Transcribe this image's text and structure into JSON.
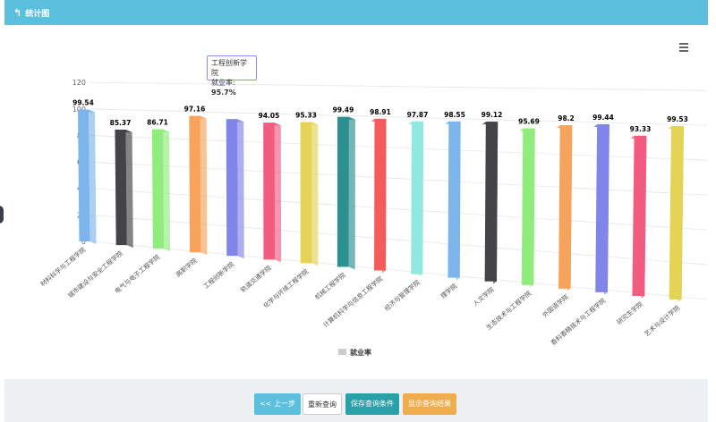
{
  "header": {
    "back_label": "统计图"
  },
  "tooltip": {
    "title": "工程创新学院",
    "label": "就业率",
    "value": "95.7%"
  },
  "footer": {
    "prev": "<< 上一步",
    "reset": "重新查询",
    "save": "保存查询条件",
    "show": "显示查询结果"
  },
  "chart_data": {
    "type": "bar",
    "categories": [
      "材料科学与工程学院",
      "城市建设与安全工程学院",
      "电气与电子工程学院",
      "高职学院",
      "工程创新学院",
      "轨道交通学院",
      "化学与环境工程学院",
      "机械工程学院",
      "计算机科学与信息工程学院",
      "经济与管理学院",
      "理学院",
      "人文学院",
      "生态技术与工程学院",
      "外国语学院",
      "香料香精技术与工程学院",
      "研究生学院",
      "艺术与设计学院"
    ],
    "series": [
      {
        "name": "就业率",
        "values": [
          99.54,
          85.37,
          86.71,
          97.16,
          95.7,
          94.05,
          95.33,
          99.49,
          98.91,
          97.87,
          98.55,
          99.12,
          95.69,
          98.2,
          99.44,
          93.33,
          99.53
        ]
      }
    ],
    "data_labels": [
      "99.54",
      "85.37",
      "86.71",
      "97.16",
      "",
      "94.05",
      "95.33",
      "99.49",
      "98.91",
      "97.87",
      "98.55",
      "99.12",
      "95.69",
      "98.2",
      "99.44",
      "93.33",
      "99.53"
    ],
    "colors": [
      "#7cb5ec",
      "#434348",
      "#90ed7d",
      "#f7a35c",
      "#8085e9",
      "#f15c80",
      "#e4d354",
      "#2b908f",
      "#f45b5b",
      "#91e8e1",
      "#7cb5ec",
      "#434348",
      "#90ed7d",
      "#f7a35c",
      "#8085e9",
      "#f15c80",
      "#e4d354"
    ],
    "yticks": [
      "0",
      "20",
      "40",
      "60",
      "80",
      "100",
      "120"
    ],
    "ylim": [
      0,
      120
    ],
    "legend": "bottom-center",
    "grid": true
  }
}
